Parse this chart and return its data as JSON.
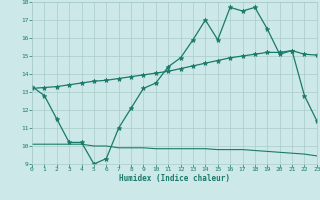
{
  "xlabel": "Humidex (Indice chaleur)",
  "x": [
    0,
    1,
    2,
    3,
    4,
    5,
    6,
    7,
    8,
    9,
    10,
    11,
    12,
    13,
    14,
    15,
    16,
    17,
    18,
    19,
    20,
    21,
    22,
    23
  ],
  "line1": [
    13.3,
    12.8,
    11.5,
    10.2,
    10.2,
    9.0,
    9.3,
    11.0,
    12.1,
    13.2,
    13.5,
    14.4,
    14.9,
    15.9,
    17.0,
    15.9,
    17.7,
    17.5,
    17.7,
    16.5,
    15.1,
    15.3,
    12.8,
    11.4
  ],
  "line2": [
    13.2,
    13.25,
    13.3,
    13.4,
    13.5,
    13.6,
    13.65,
    13.75,
    13.85,
    13.95,
    14.05,
    14.15,
    14.3,
    14.45,
    14.6,
    14.75,
    14.9,
    15.0,
    15.1,
    15.2,
    15.2,
    15.3,
    15.1,
    15.05
  ],
  "line3": [
    10.1,
    10.1,
    10.1,
    10.1,
    10.1,
    10.0,
    10.0,
    9.9,
    9.9,
    9.9,
    9.85,
    9.85,
    9.85,
    9.85,
    9.85,
    9.8,
    9.8,
    9.8,
    9.75,
    9.7,
    9.65,
    9.6,
    9.55,
    9.45
  ],
  "color": "#1a7a6a",
  "bg_color": "#cce8e8",
  "grid_color": "#aacccc",
  "ylim": [
    9,
    18
  ],
  "yticks": [
    9,
    10,
    11,
    12,
    13,
    14,
    15,
    16,
    17,
    18
  ],
  "xticks": [
    0,
    1,
    2,
    3,
    4,
    5,
    6,
    7,
    8,
    9,
    10,
    11,
    12,
    13,
    14,
    15,
    16,
    17,
    18,
    19,
    20,
    21,
    22,
    23
  ],
  "xlim": [
    0,
    23
  ]
}
